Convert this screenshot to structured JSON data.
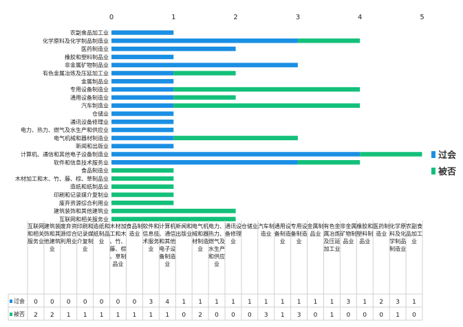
{
  "chart_data": {
    "type": "bar",
    "orientation": "horizontal",
    "stacked": true,
    "categories": [
      "农副食品加工业",
      "化学原料及化学制品制造业",
      "医药制造业",
      "橡胶和塑料制品业",
      "非金属矿物制品业",
      "有色金属冶炼及压延加工业",
      "金属制品业",
      "专用设备制造业",
      "通用设备制造业",
      "汽车制造业",
      "仓储业",
      "通讯设备修理业",
      "电力、热力、燃气及水生产和供应业",
      "电气机械和器材制造业",
      "新闻和出版业",
      "计算机、通信和其他电子设备制造业",
      "软件和信息技术服务业",
      "食品制造业",
      "木材加工和木、竹、藤、棕、草制品业",
      "造纸和纸制品业",
      "印刷和记录媒介复制业",
      "废弃资源综合利用业",
      "建筑装饰和其他建筑业",
      "互联网和相关服务业"
    ],
    "table_labels": [
      "互联网和相关服务业",
      "建筑装饰和其他建筑业",
      "废弃资源综合利用业",
      "印刷和记录媒介复制业",
      "造纸和纸制品业",
      "木材加工和木、竹、藤、棕、草制品业",
      "食品制造业",
      "软件和信息技术服务业",
      "计算机、通信和其他电子设备制造业",
      "新闻和出版业",
      "电气机械和器材制造业",
      "电力、热力、燃气及水生产和供应业",
      "通讯设备修理业",
      "仓储业",
      "汽车制造业",
      "通用设备制造业",
      "专用设备制造业",
      "金属制品业",
      "有色金属冶炼及压延加工业",
      "非金属矿物制品业",
      "橡胶和塑料制品业",
      "医药制造业",
      "化学原料及化学制品制造业",
      "农副食品加工业"
    ],
    "series": [
      {
        "name": "过会",
        "color": "#1a8fe3",
        "values": [
          1,
          3,
          2,
          1,
          3,
          1,
          1,
          1,
          1,
          1,
          1,
          1,
          1,
          1,
          1,
          4,
          3,
          0,
          0,
          0,
          0,
          0,
          0,
          0
        ]
      },
      {
        "name": "被否",
        "color": "#13c07a",
        "values": [
          0,
          1,
          0,
          0,
          0,
          1,
          0,
          3,
          1,
          3,
          0,
          0,
          0,
          2,
          0,
          1,
          1,
          1,
          1,
          1,
          1,
          1,
          2,
          2
        ]
      }
    ],
    "xlim": [
      0,
      5
    ],
    "xticks": [
      "0",
      "1",
      "2",
      "3",
      "4",
      "5"
    ],
    "grid": false,
    "legend_position": "right"
  }
}
